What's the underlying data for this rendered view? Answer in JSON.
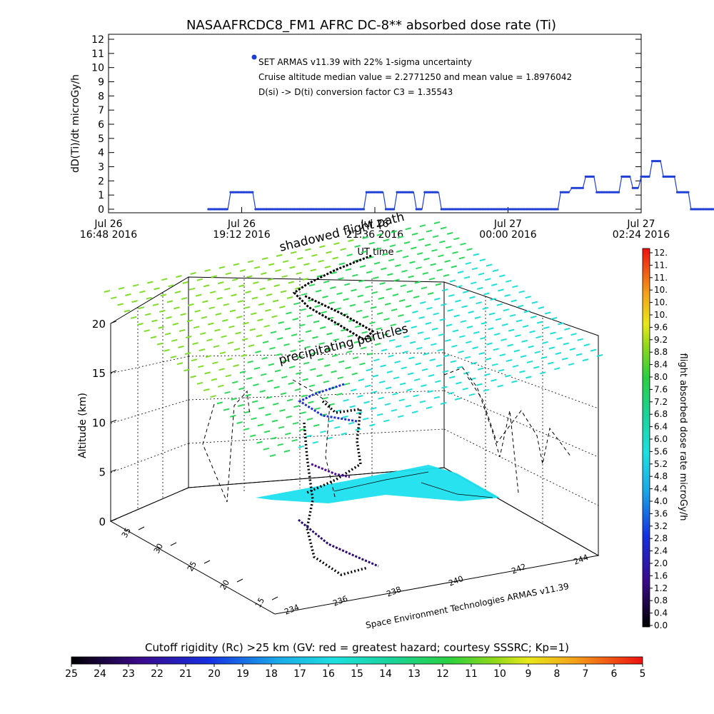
{
  "chart_data": [
    {
      "type": "line",
      "title": "NASAAFRCDC8_FM1 AFRC DC-8** absorbed dose rate (Ti)",
      "ylabel": "dD(Ti)/dt microGy/h",
      "xlabel": "UT time",
      "ylim": [
        0,
        12
      ],
      "y_ticks": [
        "0",
        "1",
        "2",
        "3",
        "4",
        "5",
        "6",
        "7",
        "8",
        "9",
        "10",
        "11",
        "12"
      ],
      "x_ticks": [
        {
          "line1": "Jul 26",
          "line2": "16:48 2016"
        },
        {
          "line1": "Jul 26",
          "line2": "19:12 2016"
        },
        {
          "line1": "Jul 26",
          "line2": "21:36 2016"
        },
        {
          "line1": "Jul 27",
          "line2": "00:00 2016"
        },
        {
          "line1": "Jul 27",
          "line2": "02:24 2016"
        }
      ],
      "legend": [
        "SET ARMAS v11.39 with 22% 1-sigma uncertainty",
        "Cruise altitude median value = 2.2771250 and mean value = 1.8976042",
        "D(si) -> D(ti) conversion factor C3 = 1.35543"
      ],
      "series_color": "#1f3fd6",
      "series": [
        {
          "x_hours": [
            1.8,
            2.15,
            2.2,
            2.6,
            2.65,
            2.85,
            2.9,
            4.6,
            4.65,
            4.95,
            5.0,
            5.15,
            5.2,
            5.5,
            5.55,
            5.65,
            5.7,
            5.95,
            6.0,
            8.1,
            8.15,
            8.3,
            8.35,
            8.55,
            8.6,
            8.75,
            8.8,
            9.2,
            9.25,
            9.4,
            9.45,
            9.55,
            9.6,
            9.75,
            9.8,
            9.95,
            10.0,
            10.2,
            10.25,
            10.45,
            10.5,
            11.2
          ],
          "values": [
            0,
            0,
            1.2,
            1.2,
            0,
            0,
            0,
            0,
            1.2,
            1.2,
            0,
            0,
            1.2,
            1.2,
            0,
            0,
            1.2,
            1.2,
            0,
            0,
            1.2,
            1.2,
            1.5,
            1.5,
            2.3,
            2.3,
            1.2,
            1.2,
            2.3,
            2.3,
            1.5,
            1.5,
            2.3,
            2.3,
            3.4,
            3.4,
            2.3,
            2.3,
            1.2,
            1.2,
            0,
            0
          ]
        }
      ]
    },
    {
      "type": "scatter",
      "ylabel": "Altitude (km)",
      "z_ticks": [
        "0",
        "5",
        "10",
        "15",
        "20"
      ],
      "lon_ticks": [
        "234",
        "236",
        "238",
        "240",
        "242",
        "244"
      ],
      "lat_ticks": [
        "15",
        "20",
        "25",
        "30",
        "35"
      ],
      "axis_caption": "Space Environment Technologies ARMAS v11.39",
      "annotations": [
        "shadowed flight path",
        "precipitating particles"
      ],
      "colorbar_right": {
        "label": "flight absorbed dose rate microGy/h",
        "ticks": [
          "0.0",
          "0.4",
          "0.8",
          "1.2",
          "1.6",
          "2.0",
          "2.4",
          "2.8",
          "3.2",
          "3.6",
          "4.0",
          "4.4",
          "4.8",
          "5.2",
          "5.6",
          "6.0",
          "6.4",
          "6.8",
          "7.2",
          "7.6",
          "8.0",
          "8.4",
          "8.8",
          "9.2",
          "9.6",
          "10.",
          "10.",
          "10.",
          "11.",
          "11.",
          "12."
        ]
      },
      "colorbar_bottom": {
        "label": "Cutoff rigidity (Rc) >25 km (GV: red = greatest hazard; courtesy SSSRC; Kp=1)",
        "ticks": [
          "25",
          "24",
          "23",
          "22",
          "21",
          "20",
          "19",
          "18",
          "17",
          "16",
          "15",
          "14",
          "13",
          "12",
          "11",
          "10",
          "9",
          "8",
          "7",
          "6",
          "5"
        ]
      }
    }
  ]
}
